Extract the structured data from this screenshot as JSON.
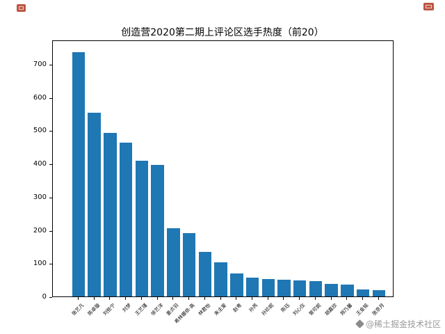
{
  "page": {
    "watermark": {
      "text": "@稀土掘金技术社区"
    },
    "corner_marks": {
      "top_left": "red-page-mark",
      "top_right": "red-page-mark"
    }
  },
  "chart_data": {
    "type": "bar",
    "title": "创造营2020第二期上评论区选手热度（前20）",
    "categories": [
      "张艺凡",
      "陈卓璇",
      "刘些宁",
      "刘梦",
      "王艺瑾",
      "徐艺洋",
      "姜贞羽",
      "希林娜依·高",
      "林君怡",
      "朱主爱",
      "赵粤",
      "孙芮",
      "孙珍妮",
      "陈珏",
      "刘心仪",
      "曾可妮",
      "胡嘉欣",
      "郑乃馨",
      "王金铭",
      "张京月"
    ],
    "values": [
      735,
      553,
      492,
      462,
      408,
      396,
      206,
      190,
      134,
      103,
      70,
      56,
      53,
      51,
      48,
      46,
      38,
      35,
      20,
      18
    ],
    "xlabel": "",
    "ylabel": "",
    "yticks": [
      0,
      100,
      200,
      300,
      400,
      500,
      600,
      700
    ],
    "ylim": [
      0,
      773
    ],
    "x_tick_rotation": 45,
    "grid": false,
    "legend": null,
    "bar_color": "#1f77b4",
    "axis_color": "#000000",
    "background_color": "#ffffff"
  }
}
